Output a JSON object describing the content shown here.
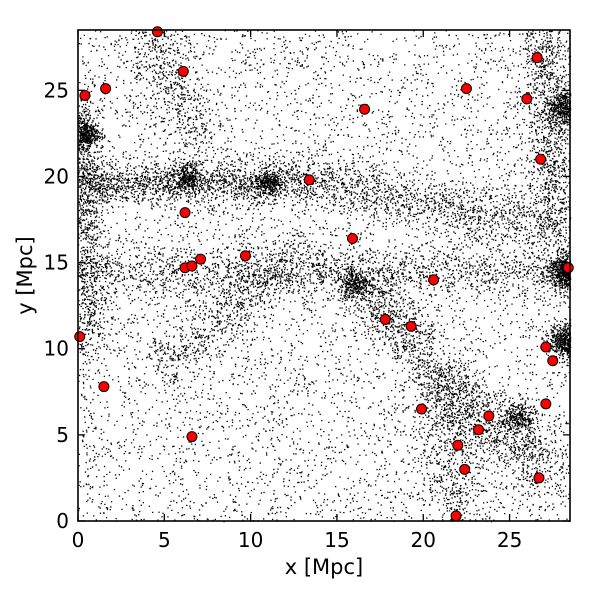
{
  "chart_data": {
    "type": "scatter",
    "xlabel": "x [Mpc]",
    "ylabel": "y [Mpc]",
    "xlim": [
      0,
      28.5
    ],
    "ylim": [
      0,
      28.5
    ],
    "xticks": [
      0,
      5,
      10,
      15,
      20,
      25
    ],
    "yticks": [
      0,
      5,
      10,
      15,
      20,
      25
    ],
    "grid": false,
    "colors": {
      "particles": "#000000",
      "halos": "#ff0000",
      "halo_edge": "#000000"
    },
    "series": [
      {
        "role": "halos",
        "points": [
          [
            4.6,
            28.4
          ],
          [
            26.6,
            26.9
          ],
          [
            6.1,
            26.1
          ],
          [
            0.4,
            24.7
          ],
          [
            1.6,
            25.1
          ],
          [
            22.5,
            25.1
          ],
          [
            26.0,
            24.5
          ],
          [
            16.6,
            23.9
          ],
          [
            26.8,
            21.0
          ],
          [
            13.4,
            19.8
          ],
          [
            6.2,
            17.9
          ],
          [
            15.9,
            16.4
          ],
          [
            9.7,
            15.4
          ],
          [
            7.1,
            15.2
          ],
          [
            6.2,
            14.7
          ],
          [
            6.6,
            14.8
          ],
          [
            20.6,
            14.0
          ],
          [
            28.4,
            14.7
          ],
          [
            17.8,
            11.7
          ],
          [
            19.3,
            11.3
          ],
          [
            0.1,
            10.7
          ],
          [
            27.1,
            10.1
          ],
          [
            27.5,
            9.3
          ],
          [
            1.5,
            7.8
          ],
          [
            27.1,
            6.8
          ],
          [
            19.9,
            6.5
          ],
          [
            23.8,
            6.1
          ],
          [
            23.2,
            5.3
          ],
          [
            6.6,
            4.9
          ],
          [
            22.0,
            4.4
          ],
          [
            22.4,
            3.0
          ],
          [
            26.7,
            2.5
          ],
          [
            21.9,
            0.3
          ]
        ]
      }
    ]
  }
}
